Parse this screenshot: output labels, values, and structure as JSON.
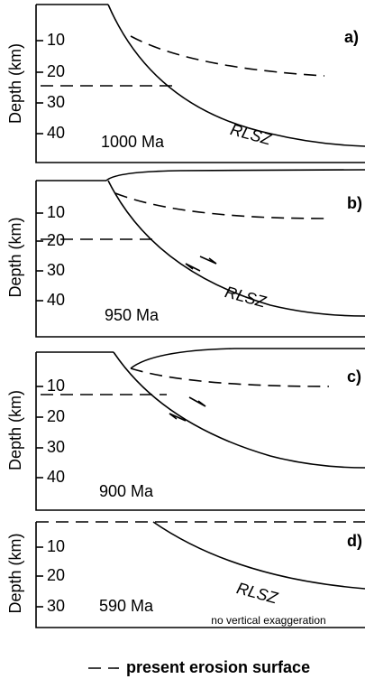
{
  "panels": [
    {
      "label": "a)",
      "age": "1000 Ma",
      "y_label": "Depth (km)",
      "ticks": [
        "10",
        "20",
        "30",
        "40"
      ],
      "fault": "RLSZ"
    },
    {
      "label": "b)",
      "age": "950 Ma",
      "y_label": "Depth (km)",
      "ticks": [
        "10",
        "20",
        "30",
        "40"
      ],
      "fault": "RLSZ"
    },
    {
      "label": "c)",
      "age": "900 Ma",
      "y_label": "Depth (km)",
      "ticks": [
        "10",
        "20",
        "30",
        "40"
      ]
    },
    {
      "label": "d)",
      "age": "590 Ma",
      "y_label": "Depth (km)",
      "ticks": [
        "10",
        "20",
        "30"
      ],
      "fault": "RLSZ",
      "note": "no vertical exaggeration"
    }
  ],
  "legend": "present erosion surface"
}
